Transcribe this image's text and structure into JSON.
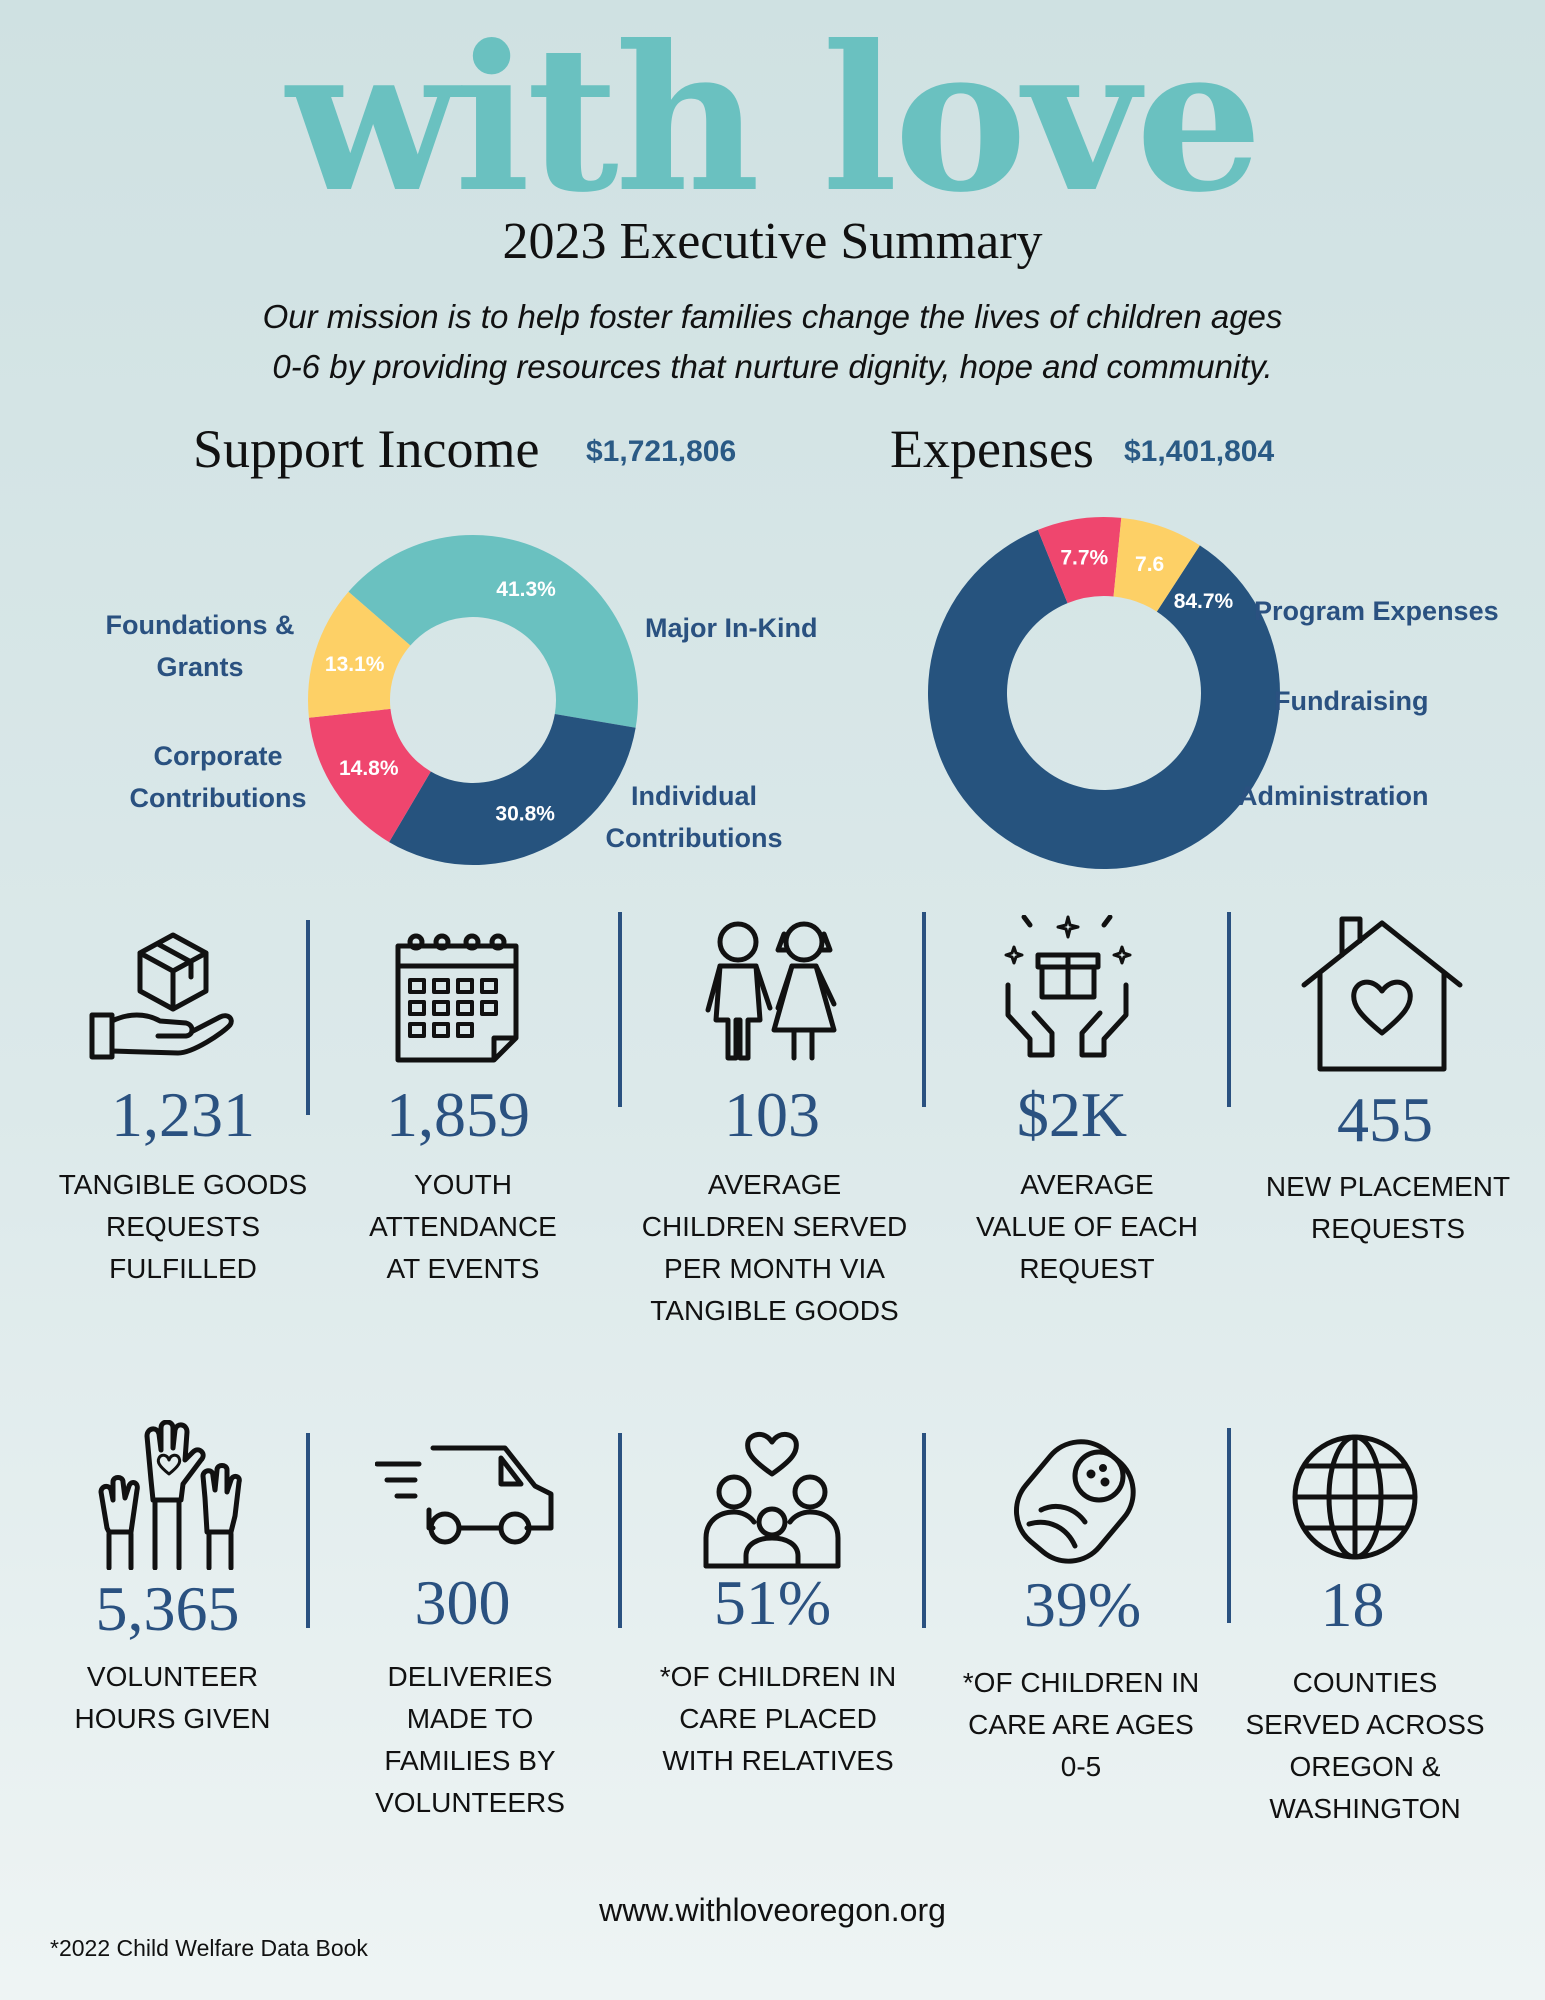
{
  "header": {
    "logo_text": "with love",
    "subtitle": "2023 Executive Summary",
    "mission_line1": "Our mission is to help foster families change the lives of children ages",
    "mission_line2": "0-6 by providing resources that nurture dignity, hope and community."
  },
  "income": {
    "title": "Support Income",
    "amount": "$1,721,806",
    "labels": {
      "foundations": "Foundations &",
      "foundations2": "Grants",
      "major": "Major In-Kind",
      "corporate": "Corporate",
      "corporate2": "Contributions",
      "individual": "Individual",
      "individual2": "Contributions"
    }
  },
  "expenses": {
    "title": "Expenses",
    "amount": "$1,401,804",
    "labels": {
      "program": "Program Expenses",
      "fundraising": "Fundraising",
      "administration": "Administration"
    }
  },
  "chart_data": [
    {
      "type": "pie",
      "donut": true,
      "title": "Support Income",
      "categories": [
        "Major In-Kind",
        "Individual Contributions",
        "Corporate Contributions",
        "Foundations & Grants"
      ],
      "values": [
        41.3,
        30.8,
        14.8,
        13.1
      ],
      "data_labels": [
        "41.3%",
        "30.8%",
        "14.8%",
        "13.1%"
      ],
      "colors": [
        "#6ac1c0",
        "#26537e",
        "#ef466e",
        "#fdd066"
      ]
    },
    {
      "type": "pie",
      "donut": true,
      "title": "Expenses",
      "categories": [
        "Program Expenses",
        "Fundraising",
        "Administration"
      ],
      "values": [
        84.7,
        7.7,
        7.6
      ],
      "data_labels": [
        "84.7%",
        "7.7%",
        "7.6"
      ],
      "colors": [
        "#26537e",
        "#ef466e",
        "#fdd066"
      ]
    }
  ],
  "stats_row1": [
    {
      "icon": "box-hand-icon",
      "number": "1,231",
      "caption": [
        "TANGIBLE GOODS",
        "REQUESTS",
        "FULFILLED"
      ]
    },
    {
      "icon": "calendar-icon",
      "number": "1,859",
      "caption": [
        "YOUTH",
        "ATTENDANCE",
        "AT EVENTS"
      ]
    },
    {
      "icon": "children-icon",
      "number": "103",
      "caption": [
        "AVERAGE",
        "CHILDREN SERVED",
        "PER MONTH VIA",
        "TANGIBLE GOODS"
      ]
    },
    {
      "icon": "gift-hands-icon",
      "number": "$2K",
      "caption": [
        "AVERAGE",
        "VALUE OF EACH",
        "REQUEST"
      ]
    },
    {
      "icon": "house-heart-icon",
      "number": "455",
      "caption": [
        "NEW PLACEMENT",
        "REQUESTS"
      ]
    }
  ],
  "stats_row2": [
    {
      "icon": "raised-hands-icon",
      "number": "5,365",
      "caption": [
        "VOLUNTEER",
        "HOURS GIVEN"
      ]
    },
    {
      "icon": "delivery-van-icon",
      "number": "300",
      "caption": [
        "DELIVERIES",
        "MADE TO",
        "FAMILIES BY",
        "VOLUNTEERS"
      ]
    },
    {
      "icon": "family-heart-icon",
      "number": "51%",
      "caption": [
        "*OF CHILDREN IN",
        "CARE PLACED",
        "WITH RELATIVES"
      ]
    },
    {
      "icon": "baby-icon",
      "number": "39%",
      "caption": [
        "*OF CHILDREN IN",
        "CARE ARE AGES",
        "0-5"
      ]
    },
    {
      "icon": "globe-icon",
      "number": "18",
      "caption": [
        "COUNTIES",
        "SERVED ACROSS",
        "OREGON &",
        "WASHINGTON"
      ]
    }
  ],
  "footer": {
    "website": "www.withloveoregon.org",
    "footnote": "*2022 Child Welfare Data Book"
  }
}
